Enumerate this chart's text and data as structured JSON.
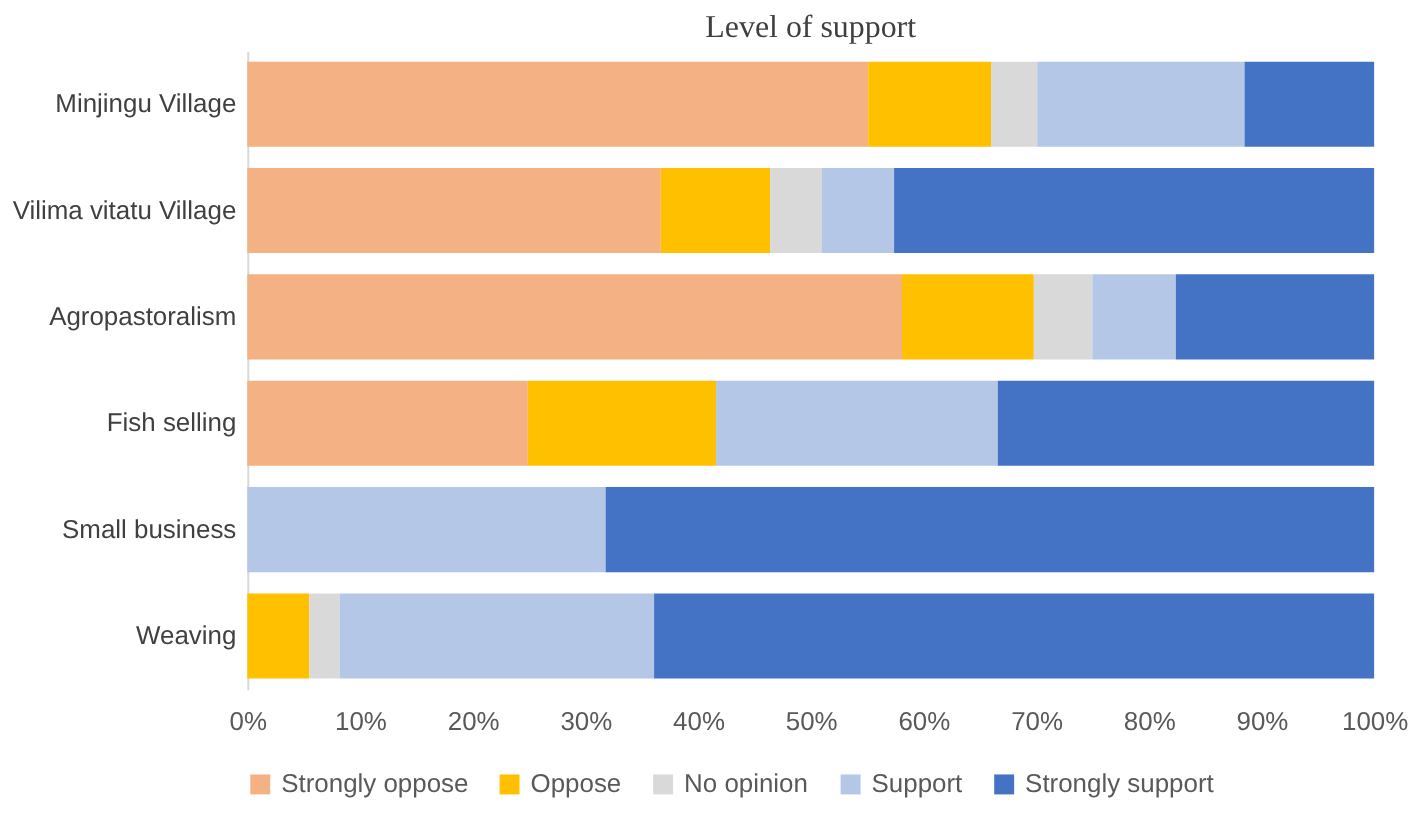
{
  "chart_data": {
    "type": "bar",
    "orientation": "horizontal",
    "stacked": true,
    "title": "Level of support",
    "categories": [
      "Minjingu Village",
      "Vilima vitatu Village",
      "Agropastoralism",
      "Fish selling",
      "Small business",
      "Weaving"
    ],
    "series": [
      {
        "name": "Strongly oppose",
        "color": "#f4b183",
        "values": [
          55.1,
          36.7,
          58.1,
          24.9,
          0,
          0
        ]
      },
      {
        "name": "Oppose",
        "color": "#ffc000",
        "values": [
          10.9,
          9.7,
          11.7,
          16.7,
          0,
          5.5
        ]
      },
      {
        "name": "No opinion",
        "color": "#d9d9d9",
        "values": [
          4.1,
          4.6,
          5.2,
          0,
          0,
          2.7
        ]
      },
      {
        "name": "Support",
        "color": "#b4c7e7",
        "values": [
          18.4,
          6.4,
          7.4,
          25.0,
          31.8,
          27.9
        ]
      },
      {
        "name": "Strongly support",
        "color": "#4472c4",
        "values": [
          11.5,
          42.6,
          17.6,
          33.4,
          68.2,
          63.9
        ]
      }
    ],
    "xlim": [
      0,
      100
    ],
    "xticks": [
      {
        "value": 0,
        "label": "0%"
      },
      {
        "value": 10,
        "label": "10%"
      },
      {
        "value": 20,
        "label": "20%"
      },
      {
        "value": 30,
        "label": "30%"
      },
      {
        "value": 40,
        "label": "40%"
      },
      {
        "value": 50,
        "label": "50%"
      },
      {
        "value": 60,
        "label": "60%"
      },
      {
        "value": 70,
        "label": "70%"
      },
      {
        "value": 80,
        "label": "80%"
      },
      {
        "value": 90,
        "label": "90%"
      },
      {
        "value": 100,
        "label": "100%"
      }
    ],
    "grid": false,
    "legend": "bottom"
  }
}
